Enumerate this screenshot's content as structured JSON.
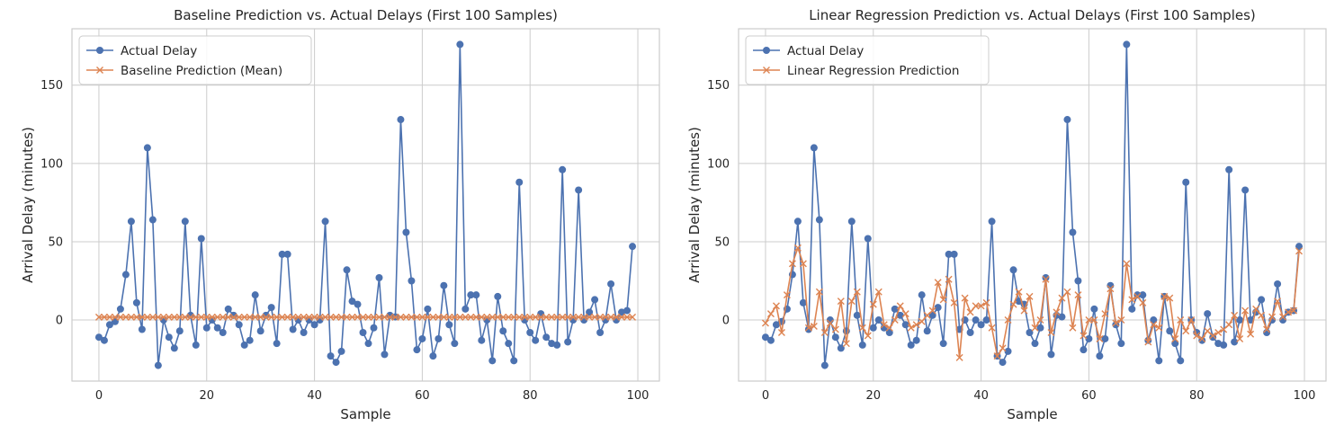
{
  "chart_data": [
    {
      "type": "line",
      "title": "Baseline Prediction vs. Actual Delays (First 100 Samples)",
      "xlabel": "Sample",
      "ylabel": "Arrival Delay (minutes)",
      "xlim": [
        -5,
        104
      ],
      "ylim": [
        -39,
        186
      ],
      "xticks": [
        0,
        20,
        40,
        60,
        80,
        100
      ],
      "yticks": [
        0,
        50,
        100,
        150
      ],
      "grid": true,
      "legend": "top-left",
      "series": [
        {
          "name": "Actual Delay",
          "color": "#4c72b0",
          "marker": "circle",
          "values": [
            -11,
            -13,
            -3,
            -1,
            7,
            29,
            63,
            11,
            -6,
            110,
            64,
            -29,
            0,
            -11,
            -18,
            -7,
            63,
            3,
            -16,
            52,
            -5,
            0,
            -5,
            -8,
            7,
            3,
            -3,
            -16,
            -13,
            16,
            -7,
            3,
            8,
            -15,
            42,
            42,
            -6,
            0,
            -8,
            0,
            -3,
            0,
            63,
            -23,
            -27,
            -20,
            32,
            12,
            10,
            -8,
            -15,
            -5,
            27,
            -22,
            3,
            2,
            128,
            56,
            25,
            -19,
            -12,
            7,
            -23,
            -12,
            22,
            -3,
            -15,
            176,
            7,
            16,
            16,
            -13,
            0,
            -26,
            15,
            -7,
            -15,
            -26,
            88,
            0,
            -8,
            -13,
            4,
            -11,
            -15,
            -16,
            96,
            -14,
            0,
            83,
            0,
            5,
            13,
            -8,
            0,
            23,
            0,
            5,
            6,
            47
          ]
        },
        {
          "name": "Baseline Prediction (Mean)",
          "color": "#dd8452",
          "marker": "x",
          "constant": 1.8
        }
      ]
    },
    {
      "type": "line",
      "title": "Linear Regression Prediction vs. Actual Delays (First 100 Samples)",
      "xlabel": "Sample",
      "ylabel": "Arrival Delay (minutes)",
      "xlim": [
        -5,
        104
      ],
      "ylim": [
        -39,
        186
      ],
      "xticks": [
        0,
        20,
        40,
        60,
        80,
        100
      ],
      "yticks": [
        0,
        50,
        100,
        150
      ],
      "grid": true,
      "legend": "top-left",
      "series": [
        {
          "name": "Actual Delay",
          "color": "#4c72b0",
          "marker": "circle",
          "values": [
            -11,
            -13,
            -3,
            -1,
            7,
            29,
            63,
            11,
            -6,
            110,
            64,
            -29,
            0,
            -11,
            -18,
            -7,
            63,
            3,
            -16,
            52,
            -5,
            0,
            -5,
            -8,
            7,
            3,
            -3,
            -16,
            -13,
            16,
            -7,
            3,
            8,
            -15,
            42,
            42,
            -6,
            0,
            -8,
            0,
            -3,
            0,
            63,
            -23,
            -27,
            -20,
            32,
            12,
            10,
            -8,
            -15,
            -5,
            27,
            -22,
            3,
            2,
            128,
            56,
            25,
            -19,
            -12,
            7,
            -23,
            -12,
            22,
            -3,
            -15,
            176,
            7,
            16,
            16,
            -13,
            0,
            -26,
            15,
            -7,
            -15,
            -26,
            88,
            0,
            -8,
            -13,
            4,
            -11,
            -15,
            -16,
            96,
            -14,
            0,
            83,
            0,
            5,
            13,
            -8,
            0,
            23,
            0,
            5,
            6,
            47
          ]
        },
        {
          "name": "Linear Regression Prediction",
          "color": "#dd8452",
          "marker": "x",
          "values": [
            -2,
            4,
            9,
            -8,
            16,
            36,
            46,
            36,
            -5,
            -4,
            18,
            -8,
            -2,
            -6,
            12,
            -15,
            12,
            18,
            -5,
            -10,
            10,
            18,
            -3,
            -5,
            0,
            9,
            4,
            -5,
            -3,
            -1,
            3,
            6,
            24,
            13,
            26,
            11,
            -24,
            14,
            5,
            9,
            9,
            11,
            -5,
            -23,
            -18,
            0,
            10,
            18,
            6,
            15,
            -5,
            0,
            26,
            -8,
            5,
            14,
            18,
            -5,
            16,
            -10,
            0,
            0,
            -12,
            4,
            20,
            -2,
            0,
            36,
            13,
            15,
            11,
            -14,
            -3,
            -5,
            15,
            14,
            -12,
            0,
            -7,
            0,
            -10,
            -12,
            -7,
            -10,
            -8,
            -6,
            -3,
            3,
            -12,
            6,
            -9,
            7,
            3,
            -6,
            2,
            12,
            2,
            5,
            6,
            44
          ]
        }
      ]
    }
  ]
}
